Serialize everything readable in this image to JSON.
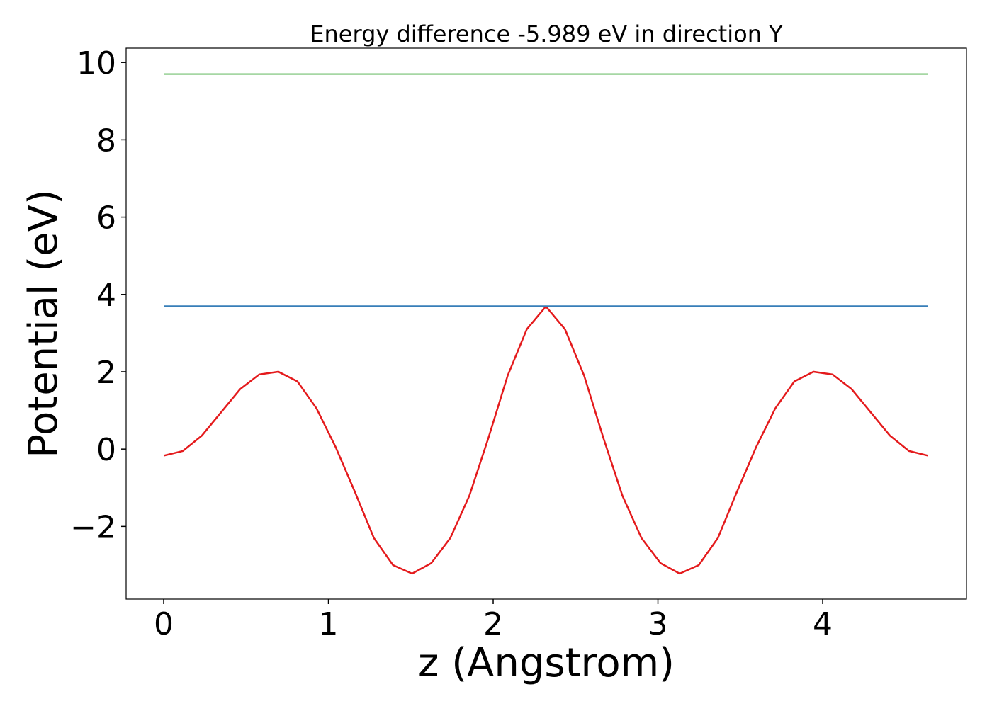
{
  "chart_data": {
    "type": "line",
    "title": "Energy difference -5.989 eV in direction Y",
    "xlabel": "z (Angstrom)",
    "ylabel": "Potential (eV)",
    "series": [
      {
        "color": "#e41a1c",
        "x": [
          0,
          0.116,
          0.232,
          0.348,
          0.464,
          0.58,
          0.696,
          0.812,
          0.928,
          1.044,
          1.16,
          1.276,
          1.392,
          1.508,
          1.624,
          1.74,
          1.856,
          1.972,
          2.088,
          2.204,
          2.32,
          2.436,
          2.552,
          2.668,
          2.784,
          2.9,
          3.016,
          3.132,
          3.248,
          3.364,
          3.48,
          3.596,
          3.712,
          3.828,
          3.944,
          4.06,
          4.176,
          4.292,
          4.408,
          4.524,
          4.64
        ],
        "values": [
          -0.17,
          -0.05,
          0.35,
          0.95,
          1.55,
          1.93,
          2.0,
          1.75,
          1.05,
          0.05,
          -1.1,
          -2.3,
          -3.0,
          -3.22,
          -2.95,
          -2.3,
          -1.2,
          0.3,
          1.9,
          3.1,
          3.69,
          3.1,
          1.9,
          0.3,
          -1.2,
          -2.3,
          -2.95,
          -3.22,
          -3.0,
          -2.3,
          -1.1,
          0.05,
          1.05,
          1.75,
          2.0,
          1.93,
          1.55,
          0.95,
          0.35,
          -0.05,
          -0.17
        ]
      },
      {
        "color": "#377eb8",
        "x": [
          0,
          4.64
        ],
        "values": [
          3.7,
          3.7
        ]
      },
      {
        "color": "#4daf4a",
        "x": [
          0,
          4.64
        ],
        "values": [
          9.7,
          9.7
        ]
      }
    ],
    "xlim": [
      -0.228,
      4.873
    ],
    "ylim": [
      -3.88,
      10.37
    ],
    "xticks": [
      0,
      1,
      2,
      3,
      4
    ],
    "yticks": [
      {
        "value": -2,
        "label": "−2"
      },
      0,
      2,
      4,
      6,
      8,
      10
    ],
    "grid": false
  }
}
